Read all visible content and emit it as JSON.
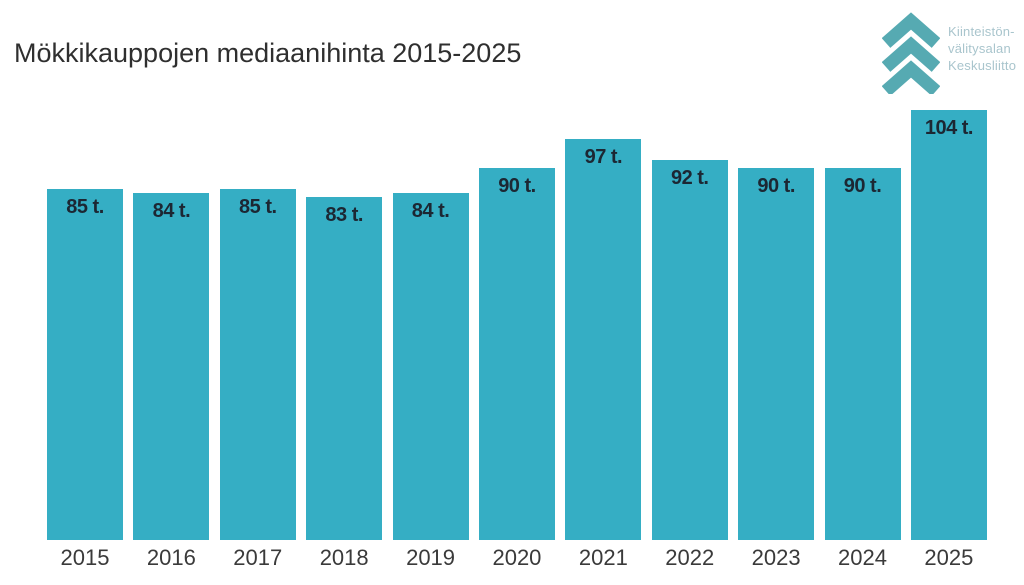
{
  "title": "Mökkikauppojen mediaanihinta 2015-2025",
  "logo": {
    "lines": [
      "Kiinteistön-",
      "välitysalan",
      "Keskusliitto"
    ],
    "chevron_color": "#56aab2",
    "text_color": "#a9c5cd"
  },
  "chart_data": {
    "type": "bar",
    "title": "Mökkikauppojen mediaanihinta 2015-2025",
    "categories": [
      "2015",
      "2016",
      "2017",
      "2018",
      "2019",
      "2020",
      "2021",
      "2022",
      "2023",
      "2024",
      "2025"
    ],
    "values": [
      85,
      84,
      85,
      83,
      84,
      90,
      97,
      92,
      90,
      90,
      104
    ],
    "value_labels": [
      "85 t.",
      "84 t.",
      "85 t.",
      "83 t.",
      "84 t.",
      "90 t.",
      "97 t.",
      "92 t.",
      "90 t.",
      "90 t.",
      "104 t."
    ],
    "xlabel": "",
    "ylabel": "",
    "ylim": [
      0,
      104
    ],
    "grid": false,
    "legend": false,
    "bar_color": "#35aec4",
    "value_label_color": "#1c2733",
    "x_tick_color": "#3a3a3a",
    "title_color": "#2f2f2f"
  }
}
